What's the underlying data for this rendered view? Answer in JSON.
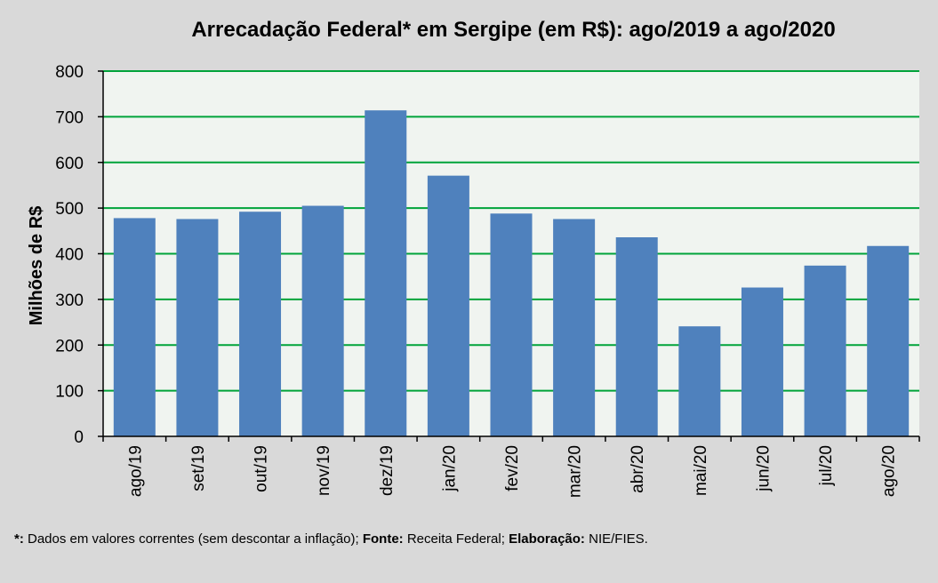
{
  "chart_data": {
    "type": "bar",
    "title": "Arrecadação Federal* em Sergipe (em R$): ago/2019 a ago/2020",
    "xlabel": "",
    "ylabel": "Milhões de R$",
    "ylim": [
      0,
      800
    ],
    "yticks": [
      0,
      100,
      200,
      300,
      400,
      500,
      600,
      700,
      800
    ],
    "grid": true,
    "categories": [
      "ago/19",
      "set/19",
      "out/19",
      "nov/19",
      "dez/19",
      "jan/20",
      "fev/20",
      "mar/20",
      "abr/20",
      "mai/20",
      "jun/20",
      "jul/20",
      "ago/20"
    ],
    "values": [
      478,
      476,
      492,
      505,
      714,
      571,
      488,
      476,
      436,
      241,
      326,
      374,
      417
    ],
    "series_color": "#4f81bd",
    "grid_color": "#00a33a",
    "plot_background": "#f0f4f0"
  },
  "footnote": {
    "star_label": "*:",
    "star_text": " Dados em valores correntes (sem descontar a inflação); ",
    "source_label": "Fonte:",
    "source_text": " Receita  Federal; ",
    "credit_label": "Elaboração:",
    "credit_text": " NIE/FIES."
  }
}
